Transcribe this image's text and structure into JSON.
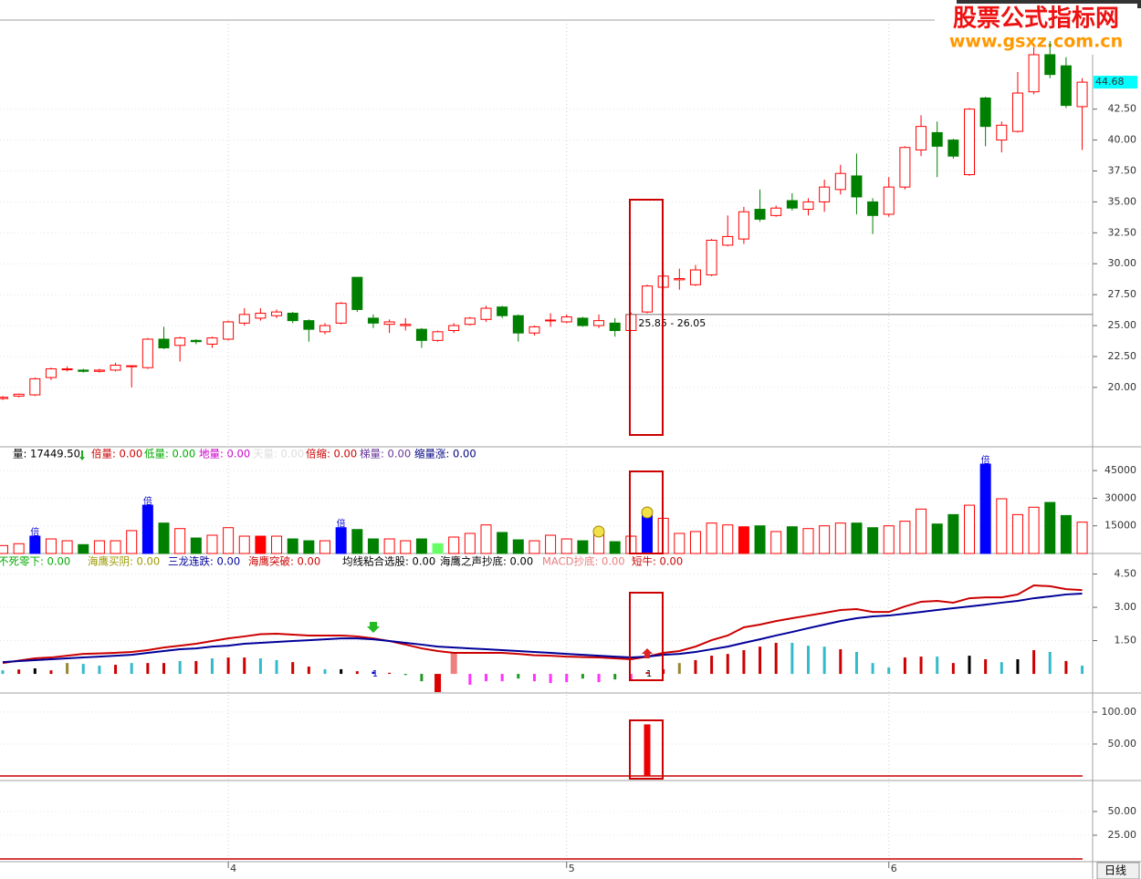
{
  "watermark": {
    "title": "股票公式指标网",
    "url": "www.gsxz.com.cn"
  },
  "period": "日线",
  "chart_data": [
    {
      "type": "candlestick",
      "categories": [
        null,
        null,
        null,
        null,
        null,
        null,
        null,
        null,
        null,
        null,
        null,
        null,
        null,
        null,
        "4",
        null,
        null,
        null,
        null,
        null,
        null,
        null,
        null,
        null,
        null,
        null,
        null,
        null,
        null,
        null,
        null,
        null,
        null,
        null,
        null,
        "5",
        null,
        null,
        null,
        null,
        null,
        null,
        null,
        null,
        null,
        null,
        null,
        null,
        null,
        null,
        null,
        null,
        null,
        null,
        null,
        "6",
        null,
        null,
        null,
        null,
        null,
        null,
        null,
        null,
        null,
        null,
        null,
        null
      ],
      "open": [
        19.1,
        19.3,
        19.4,
        20.8,
        21.45,
        21.4,
        21.3,
        21.4,
        21.7,
        21.6,
        23.9,
        23.4,
        23.8,
        23.5,
        23.9,
        25.2,
        25.6,
        25.8,
        26.0,
        25.4,
        24.5,
        25.2,
        28.9,
        25.6,
        25.1,
        25.0,
        24.7,
        23.8,
        24.6,
        25.1,
        25.5,
        26.5,
        25.8,
        24.4,
        25.4,
        25.3,
        25.6,
        25.0,
        25.2,
        24.6,
        26.1,
        28.1,
        28.7,
        28.3,
        29.1,
        31.5,
        32.0,
        34.4,
        33.9,
        35.1,
        34.4,
        35.0,
        36.0,
        37.1,
        35.0,
        34.0,
        36.2,
        39.2,
        40.6,
        40.0,
        37.2,
        43.4,
        40.0,
        40.7,
        43.9,
        46.9,
        46.0,
        42.7
      ],
      "high": [
        19.3,
        19.5,
        20.8,
        21.6,
        21.7,
        21.5,
        21.5,
        22.0,
        21.8,
        24.0,
        24.9,
        24.1,
        23.9,
        24.1,
        25.4,
        26.4,
        26.4,
        26.3,
        26.1,
        25.5,
        25.2,
        26.9,
        28.9,
        25.9,
        25.5,
        25.6,
        24.8,
        24.6,
        25.2,
        25.7,
        26.6,
        26.6,
        25.9,
        25.0,
        26.0,
        25.9,
        25.7,
        25.9,
        25.6,
        26.05,
        28.3,
        29.4,
        29.6,
        29.9,
        32.0,
        33.9,
        34.6,
        36.0,
        34.7,
        35.7,
        35.3,
        36.8,
        38.0,
        38.9,
        35.3,
        37.0,
        39.5,
        42.0,
        41.5,
        40.1,
        42.6,
        43.5,
        41.5,
        45.5,
        47.5,
        48.0,
        46.7,
        45.0
      ],
      "low": [
        19.0,
        19.2,
        19.3,
        20.6,
        21.3,
        21.2,
        21.2,
        21.3,
        20.0,
        21.5,
        23.1,
        22.1,
        23.5,
        23.2,
        23.8,
        25.0,
        25.4,
        25.6,
        25.2,
        23.7,
        24.3,
        25.1,
        26.1,
        24.8,
        24.4,
        24.6,
        23.2,
        23.7,
        24.4,
        25.0,
        25.3,
        25.6,
        23.7,
        24.2,
        24.9,
        25.2,
        24.9,
        24.8,
        24.1,
        24.6,
        26.0,
        27.9,
        27.9,
        28.2,
        29.0,
        31.4,
        31.6,
        33.4,
        33.8,
        34.3,
        33.9,
        34.2,
        35.6,
        34.0,
        32.4,
        33.8,
        36.0,
        38.7,
        37.0,
        38.5,
        37.1,
        39.5,
        39.0,
        40.6,
        43.7,
        45.0,
        42.6,
        39.2
      ],
      "close": [
        19.2,
        19.45,
        20.7,
        21.5,
        21.5,
        21.3,
        21.4,
        21.8,
        21.75,
        23.9,
        23.2,
        24.0,
        23.7,
        24.0,
        25.3,
        25.9,
        26.0,
        26.1,
        25.4,
        24.7,
        25.0,
        26.8,
        26.3,
        25.2,
        25.3,
        25.1,
        23.8,
        24.5,
        25.0,
        25.6,
        26.4,
        25.8,
        24.4,
        24.9,
        25.45,
        25.7,
        25.0,
        25.4,
        24.6,
        25.9,
        28.2,
        29.0,
        28.8,
        29.5,
        31.9,
        32.2,
        34.2,
        33.6,
        34.5,
        34.5,
        35.0,
        36.2,
        37.3,
        35.4,
        33.9,
        36.2,
        39.4,
        41.1,
        39.5,
        38.7,
        42.5,
        41.1,
        41.2,
        43.8,
        46.9,
        45.3,
        42.8,
        44.68
      ],
      "up_color": "#ff0000",
      "down_color": "#008000",
      "ylim": [
        15.2,
        49.7
      ],
      "yticks": [
        {
          "value": 20,
          "label": "20.00"
        },
        {
          "value": 22.5,
          "label": "22.50"
        },
        {
          "value": 25,
          "label": "25.00"
        },
        {
          "value": 27.5,
          "label": "27.50"
        },
        {
          "value": 30,
          "label": "30.00"
        },
        {
          "value": 32.5,
          "label": "32.50"
        },
        {
          "value": 35,
          "label": "35.00"
        },
        {
          "value": 37.5,
          "label": "37.50"
        },
        {
          "value": 40,
          "label": "40.00"
        },
        {
          "value": 42.5,
          "label": "42.50"
        }
      ],
      "last_price": {
        "value": 44.68,
        "label": "44.68"
      },
      "annotation": {
        "text": "25.85 - 26.05",
        "value": 25.9
      }
    },
    {
      "type": "bar",
      "legend": [
        {
          "text": "量: 17449.50",
          "color": "#000000"
        },
        {
          "text": "倍量: 0.00",
          "color": "#cc0000"
        },
        {
          "text": "低量: 0.00",
          "color": "#00aa00"
        },
        {
          "text": "地量: 0.00",
          "color": "#cc00cc"
        },
        {
          "text": "天量: 0.00",
          "color": "#dddddd"
        },
        {
          "text": "倍缩: 0.00",
          "color": "#cc0000"
        },
        {
          "text": "梯量: 0.00",
          "color": "#663399"
        },
        {
          "text": "缩量涨: 0.00",
          "color": "#000080"
        }
      ],
      "values": [
        4300,
        5300,
        9400,
        7900,
        6900,
        4800,
        6900,
        6900,
        12400,
        26200,
        16500,
        13500,
        8400,
        9900,
        14000,
        9400,
        9400,
        9400,
        7900,
        6900,
        6900,
        14000,
        13000,
        7900,
        7900,
        6900,
        7900,
        5300,
        8900,
        10900,
        15500,
        11400,
        7400,
        6900,
        9900,
        7900,
        6900,
        10400,
        6400,
        9400,
        20600,
        19100,
        10900,
        11900,
        16500,
        15500,
        14500,
        15000,
        11900,
        14500,
        13500,
        15000,
        16500,
        16500,
        14000,
        15000,
        17500,
        24100,
        16000,
        21100,
        26200,
        48500,
        29700,
        21100,
        25100,
        27700,
        20600,
        17000
      ],
      "up_color": "#ff0000",
      "down_color": "#008000",
      "special_colors": [
        {
          "index": 2,
          "color": "#0000ff"
        },
        {
          "index": 9,
          "color": "#0000ff"
        },
        {
          "index": 16,
          "color": "#ff0000"
        },
        {
          "index": 21,
          "color": "#0000ff"
        },
        {
          "index": 27,
          "color": "#66ff66"
        },
        {
          "index": 40,
          "color": "#0000ff"
        },
        {
          "index": 46,
          "color": "#ff0000"
        },
        {
          "index": 61,
          "color": "#0000ff"
        }
      ],
      "markers": [
        {
          "index": 2,
          "label": "倍"
        },
        {
          "index": 9,
          "label": "倍"
        },
        {
          "index": 21,
          "label": "倍"
        },
        {
          "index": 61,
          "label": "倍"
        }
      ],
      "ylim": [
        0,
        49000
      ],
      "yticks": [
        15000,
        30000,
        45000
      ]
    },
    {
      "type": "combo",
      "legend": [
        {
          "text": "不死零下: 0.00",
          "color": "#00aa00"
        },
        {
          "text": "海鹰买阴: 0.00",
          "color": "#999900"
        },
        {
          "text": "三龙连跌: 0.00",
          "color": "#000099"
        },
        {
          "text": "海鹰突破: 0.00",
          "color": "#cc0000"
        },
        {
          "text": "均线粘合选股: 0.00",
          "color": "#000000"
        },
        {
          "text": "海鹰之声抄底: 0.00",
          "color": "#000000"
        },
        {
          "text": "MACD抄底: 0.00",
          "color": "#e88080"
        },
        {
          "text": "短牛: 0.00",
          "color": "#cc0000"
        }
      ],
      "series": [
        {
          "color": "#cc0000",
          "values": [
            0.49,
            0.6,
            0.7,
            0.74,
            0.82,
            0.9,
            0.92,
            0.95,
            0.99,
            1.07,
            1.19,
            1.27,
            1.36,
            1.48,
            1.6,
            1.69,
            1.79,
            1.81,
            1.77,
            1.73,
            1.73,
            1.73,
            1.69,
            1.6,
            1.48,
            1.32,
            1.15,
            1.03,
            0.95,
            0.95,
            0.95,
            0.95,
            0.9,
            0.84,
            0.82,
            0.78,
            0.76,
            0.74,
            0.7,
            0.66,
            0.78,
            0.95,
            1.03,
            1.23,
            1.52,
            1.73,
            2.1,
            2.22,
            2.38,
            2.51,
            2.63,
            2.75,
            2.88,
            2.92,
            2.79,
            2.79,
            3.04,
            3.25,
            3.29,
            3.21,
            3.41,
            3.45,
            3.45,
            3.58,
            3.99,
            3.95,
            3.82,
            3.78
          ]
        },
        {
          "color": "#000099",
          "values": [
            0.53,
            0.58,
            0.62,
            0.66,
            0.7,
            0.74,
            0.78,
            0.82,
            0.86,
            0.95,
            1.03,
            1.11,
            1.15,
            1.23,
            1.27,
            1.36,
            1.4,
            1.44,
            1.48,
            1.52,
            1.56,
            1.6,
            1.6,
            1.56,
            1.48,
            1.4,
            1.32,
            1.23,
            1.19,
            1.15,
            1.11,
            1.07,
            1.03,
            0.99,
            0.95,
            0.9,
            0.86,
            0.82,
            0.78,
            0.74,
            0.78,
            0.86,
            0.9,
            0.99,
            1.11,
            1.23,
            1.4,
            1.56,
            1.73,
            1.89,
            2.06,
            2.22,
            2.38,
            2.51,
            2.59,
            2.63,
            2.71,
            2.79,
            2.88,
            2.96,
            3.04,
            3.12,
            3.21,
            3.29,
            3.41,
            3.49,
            3.58,
            3.62
          ]
        }
      ],
      "histogram": {
        "values": [
          0.16,
          0.2,
          0.25,
          0.16,
          0.49,
          0.45,
          0.37,
          0.41,
          0.49,
          0.49,
          0.49,
          0.58,
          0.58,
          0.7,
          0.74,
          0.74,
          0.7,
          0.62,
          0.53,
          0.33,
          0.21,
          0.21,
          0.12,
          0.1,
          0.05,
          -0.05,
          -0.33,
          -0.82,
          0.99,
          -0.49,
          -0.33,
          -0.33,
          -0.21,
          -0.33,
          -0.41,
          -0.37,
          -0.21,
          -0.37,
          -0.25,
          -0.25,
          0.08,
          0.21,
          0.49,
          0.62,
          0.82,
          0.9,
          1.07,
          1.23,
          1.4,
          1.4,
          1.27,
          1.23,
          1.11,
          0.99,
          0.49,
          0.29,
          0.74,
          0.78,
          0.78,
          0.49,
          0.82,
          0.66,
          0.53,
          0.66,
          1.07,
          0.99,
          0.58,
          0.37
        ],
        "colors": [
          "#33bbcc",
          "#cc0000",
          "#000000",
          "#cc0000",
          "#998833",
          "#33bbcc",
          "#33bbcc",
          "#cc0000",
          "#33bbcc",
          "#cc0000",
          "#cc0000",
          "#33bbcc",
          "#cc0000",
          "#33bbcc",
          "#cc0000",
          "#cc0000",
          "#33bbcc",
          "#33bbcc",
          "#cc0000",
          "#cc0000",
          "#33bbcc",
          "#000000",
          "#cc0000",
          "#0000cc",
          "#cc0000",
          "#229922",
          "#229922",
          "#dd0000",
          "#f08080",
          "#ff33ff",
          "#ff33ff",
          "#ff33ff",
          "#229922",
          "#ff33ff",
          "#ff33ff",
          "#ff33ff",
          "#229922",
          "#ff33ff",
          "#229922",
          "#ff33ff",
          "#cc0000",
          "#cc0000",
          "#998833",
          "#cc0000",
          "#cc0000",
          "#cc0000",
          "#cc0000",
          "#cc0000",
          "#cc0000",
          "#33bbcc",
          "#33bbcc",
          "#33bbcc",
          "#cc0000",
          "#33bbcc",
          "#33bbcc",
          "#33bbcc",
          "#cc0000",
          "#cc0000",
          "#33bbcc",
          "#cc0000",
          "#000000",
          "#cc0000",
          "#33bbcc",
          "#000000",
          "#cc0000",
          "#33bbcc",
          "#cc0000",
          "#33bbcc"
        ]
      },
      "signals": [
        {
          "index": 23,
          "label": "1",
          "color": "#0000cc"
        },
        {
          "index": 40,
          "label": "1",
          "color": "#000000"
        }
      ],
      "ylim": [
        -0.86,
        4.81
      ],
      "yticks": [
        {
          "value": 1.5,
          "label": "1.50"
        },
        {
          "value": 3,
          "label": "3.00"
        },
        {
          "value": 4.5,
          "label": "4.50"
        }
      ]
    },
    {
      "type": "bar",
      "values": [
        0,
        0,
        0,
        0,
        0,
        0,
        0,
        0,
        0,
        0,
        0,
        0,
        0,
        0,
        0,
        0,
        0,
        0,
        0,
        0,
        0,
        0,
        0,
        0,
        0,
        0,
        0,
        0,
        0,
        0,
        0,
        0,
        0,
        0,
        0,
        0,
        0,
        0,
        0,
        0,
        80,
        0,
        0,
        0,
        0,
        0,
        0,
        0,
        0,
        0,
        0,
        0,
        0,
        0,
        0,
        0,
        0,
        0,
        0,
        0,
        0,
        0,
        0,
        0,
        0,
        0,
        0,
        0
      ],
      "color": "#ee0000",
      "ylim": [
        -5.7,
        127
      ],
      "yticks": [
        {
          "value": 50,
          "label": "50.00"
        },
        {
          "value": 100,
          "label": "100.00"
        }
      ]
    },
    {
      "type": "bar",
      "ylim": [
        -2.9,
        81.7
      ],
      "yticks": [
        {
          "value": 25,
          "label": "25.00"
        },
        {
          "value": 50,
          "label": "50.00"
        }
      ]
    }
  ]
}
